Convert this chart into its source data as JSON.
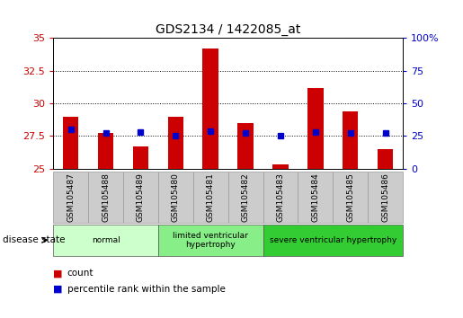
{
  "title": "GDS2134 / 1422085_at",
  "samples": [
    "GSM105487",
    "GSM105488",
    "GSM105489",
    "GSM105480",
    "GSM105481",
    "GSM105482",
    "GSM105483",
    "GSM105484",
    "GSM105485",
    "GSM105486"
  ],
  "count_values": [
    29.0,
    27.7,
    26.7,
    29.0,
    34.2,
    28.5,
    25.3,
    31.2,
    29.4,
    26.5
  ],
  "percentile_values": [
    30,
    27,
    28,
    25,
    29,
    27,
    25,
    28,
    27.5,
    27
  ],
  "ylim_left": [
    25,
    35
  ],
  "ylim_right": [
    0,
    100
  ],
  "yticks_left": [
    25,
    27.5,
    30,
    32.5,
    35
  ],
  "yticks_right": [
    0,
    25,
    50,
    75,
    100
  ],
  "bar_color": "#cc0000",
  "dot_color": "#0000cc",
  "bar_baseline": 25,
  "groups": [
    {
      "label": "normal",
      "start": 0,
      "end": 3,
      "color": "#ccffcc"
    },
    {
      "label": "limited ventricular\nhypertrophy",
      "start": 3,
      "end": 6,
      "color": "#88ee88"
    },
    {
      "label": "severe ventricular hypertrophy",
      "start": 6,
      "end": 10,
      "color": "#33cc33"
    }
  ],
  "disease_state_label": "disease state",
  "legend_count_label": "count",
  "legend_percentile_label": "percentile rank within the sample",
  "bg_color": "#ffffff",
  "plot_bg_color": "#ffffff",
  "grid_color": "#000000",
  "tick_label_color_left": "#cc0000",
  "tick_label_color_right": "#0000cc",
  "box_color": "#cccccc",
  "box_edge_color": "#999999"
}
